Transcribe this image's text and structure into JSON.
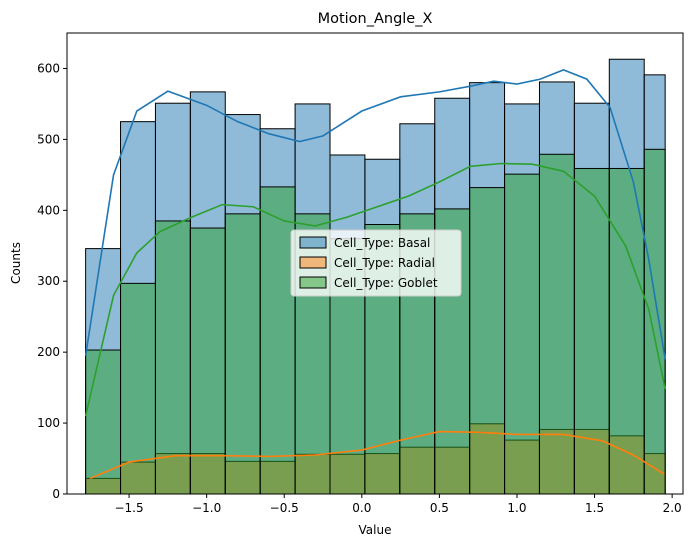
{
  "chart_data": {
    "type": "histogram",
    "title": "Motion_Angle_X",
    "xlabel": "Value",
    "ylabel": "Counts",
    "xlim": [
      -1.9,
      2.07
    ],
    "ylim": [
      0,
      650
    ],
    "xticks": [
      -1.5,
      -1.0,
      -0.5,
      0.0,
      0.5,
      1.0,
      1.5,
      2.0
    ],
    "xtick_labels": [
      "−1.5",
      "−1.0",
      "−0.5",
      "0.0",
      "0.5",
      "1.0",
      "1.5",
      "2.0"
    ],
    "yticks": [
      0,
      100,
      200,
      300,
      400,
      500,
      600
    ],
    "ytick_labels": [
      "0",
      "100",
      "200",
      "300",
      "400",
      "500",
      "600"
    ],
    "bin_edges": [
      -1.78,
      -1.555,
      -1.33,
      -1.105,
      -0.88,
      -0.655,
      -0.43,
      -0.205,
      0.02,
      0.245,
      0.47,
      0.695,
      0.92,
      1.145,
      1.37,
      1.595,
      1.82,
      1.955
    ],
    "legend_position": "center",
    "grid": false,
    "series": [
      {
        "name": "Cell_Type: Basal",
        "color": "#1f77b4",
        "bins": [
          [
            -1.78,
            -1.555,
            346
          ],
          [
            -1.555,
            -1.33,
            525
          ],
          [
            -1.33,
            -1.105,
            551
          ],
          [
            -1.105,
            -0.88,
            567
          ],
          [
            -0.88,
            -0.655,
            535
          ],
          [
            -0.655,
            -0.43,
            515
          ],
          [
            -0.43,
            -0.205,
            550
          ],
          [
            -0.205,
            0.02,
            478
          ],
          [
            0.02,
            0.245,
            472
          ],
          [
            0.245,
            0.47,
            522
          ],
          [
            0.47,
            0.695,
            558
          ],
          [
            0.695,
            0.92,
            580
          ],
          [
            0.92,
            1.145,
            550
          ],
          [
            1.145,
            1.37,
            581
          ],
          [
            1.37,
            1.595,
            551
          ],
          [
            1.595,
            1.82,
            613
          ],
          [
            1.82,
            1.955,
            591
          ]
        ],
        "kde": [
          [
            -1.78,
            195
          ],
          [
            -1.6,
            450
          ],
          [
            -1.45,
            540
          ],
          [
            -1.25,
            568
          ],
          [
            -1.0,
            548
          ],
          [
            -0.8,
            525
          ],
          [
            -0.6,
            508
          ],
          [
            -0.4,
            497
          ],
          [
            -0.25,
            505
          ],
          [
            0.0,
            540
          ],
          [
            0.25,
            560
          ],
          [
            0.5,
            567
          ],
          [
            0.7,
            575
          ],
          [
            0.85,
            582
          ],
          [
            1.0,
            578
          ],
          [
            1.15,
            585
          ],
          [
            1.3,
            598
          ],
          [
            1.45,
            585
          ],
          [
            1.6,
            545
          ],
          [
            1.75,
            440
          ],
          [
            1.85,
            330
          ],
          [
            1.955,
            190
          ]
        ]
      },
      {
        "name": "Cell_Type: Radial",
        "color": "#ff7f0e",
        "bins": [
          [
            -1.78,
            -1.555,
            22
          ],
          [
            -1.555,
            -1.33,
            45
          ],
          [
            -1.33,
            -1.105,
            57
          ],
          [
            -1.105,
            -0.88,
            57
          ],
          [
            -0.88,
            -0.655,
            46
          ],
          [
            -0.655,
            -0.43,
            46
          ],
          [
            -0.43,
            -0.205,
            56
          ],
          [
            -0.205,
            0.02,
            56
          ],
          [
            0.02,
            0.245,
            57
          ],
          [
            0.245,
            0.47,
            66
          ],
          [
            0.47,
            0.695,
            66
          ],
          [
            0.695,
            0.92,
            99
          ],
          [
            0.92,
            1.145,
            76
          ],
          [
            1.145,
            1.37,
            91
          ],
          [
            1.37,
            1.595,
            91
          ],
          [
            1.595,
            1.82,
            82
          ],
          [
            1.82,
            1.955,
            57
          ]
        ],
        "kde": [
          [
            -1.75,
            22
          ],
          [
            -1.5,
            45
          ],
          [
            -1.2,
            54
          ],
          [
            -0.9,
            54
          ],
          [
            -0.6,
            53
          ],
          [
            -0.3,
            55
          ],
          [
            0.0,
            62
          ],
          [
            0.25,
            76
          ],
          [
            0.5,
            88
          ],
          [
            0.75,
            87
          ],
          [
            1.0,
            84
          ],
          [
            1.3,
            84
          ],
          [
            1.55,
            75
          ],
          [
            1.75,
            55
          ],
          [
            1.95,
            28
          ]
        ]
      },
      {
        "name": "Cell_Type: Goblet",
        "color": "#2ca02c",
        "bins": [
          [
            -1.78,
            -1.555,
            203
          ],
          [
            -1.555,
            -1.33,
            297
          ],
          [
            -1.33,
            -1.105,
            385
          ],
          [
            -1.105,
            -0.88,
            375
          ],
          [
            -0.88,
            -0.655,
            395
          ],
          [
            -0.655,
            -0.43,
            433
          ],
          [
            -0.43,
            -0.205,
            395
          ],
          [
            -0.205,
            0.02,
            360
          ],
          [
            0.02,
            0.245,
            380
          ],
          [
            0.245,
            0.47,
            395
          ],
          [
            0.47,
            0.695,
            402
          ],
          [
            0.695,
            0.92,
            432
          ],
          [
            0.92,
            1.145,
            451
          ],
          [
            1.145,
            1.37,
            479
          ],
          [
            1.37,
            1.595,
            459
          ],
          [
            1.595,
            1.82,
            459
          ],
          [
            1.82,
            1.955,
            486
          ]
        ],
        "kde": [
          [
            -1.78,
            110
          ],
          [
            -1.6,
            280
          ],
          [
            -1.45,
            340
          ],
          [
            -1.3,
            370
          ],
          [
            -1.1,
            390
          ],
          [
            -0.9,
            408
          ],
          [
            -0.7,
            405
          ],
          [
            -0.5,
            385
          ],
          [
            -0.3,
            378
          ],
          [
            -0.1,
            390
          ],
          [
            0.1,
            405
          ],
          [
            0.3,
            420
          ],
          [
            0.5,
            440
          ],
          [
            0.7,
            462
          ],
          [
            0.9,
            466
          ],
          [
            1.1,
            465
          ],
          [
            1.3,
            455
          ],
          [
            1.5,
            420
          ],
          [
            1.7,
            350
          ],
          [
            1.85,
            260
          ],
          [
            1.955,
            148
          ]
        ]
      }
    ]
  }
}
